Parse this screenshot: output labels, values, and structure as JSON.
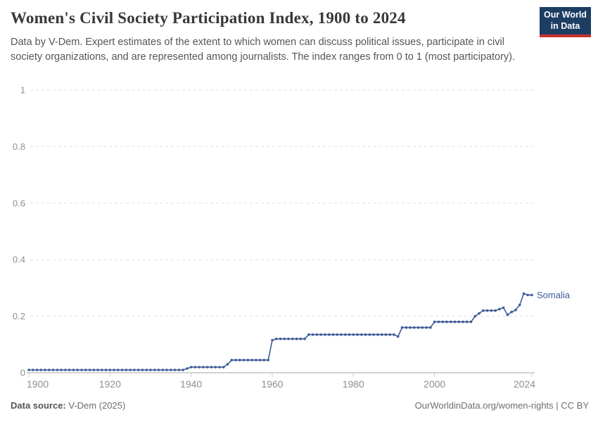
{
  "header": {
    "title": "Women's Civil Society Participation Index, 1900 to 2024",
    "subtitle": "Data by V-Dem. Expert estimates of the extent to which women can discuss political issues, participate in civil society organizations, and are represented among journalists. The index ranges from 0 to 1 (most participatory)."
  },
  "logo": {
    "line1": "Our World",
    "line2": "in Data",
    "bg_color": "#1d3d63",
    "stripe_color": "#c5312b"
  },
  "footer": {
    "source_label": "Data source:",
    "source_text": "V-Dem (2025)",
    "link_text": "OurWorldinData.org/women-rights | CC BY"
  },
  "chart_data": {
    "type": "line",
    "title": "Women's Civil Society Participation Index, 1900 to 2024",
    "xlabel": "",
    "ylabel": "",
    "xlim": [
      1900,
      2024
    ],
    "ylim": [
      0,
      1
    ],
    "xticks": [
      1900,
      1920,
      1940,
      1960,
      1980,
      2000,
      2024
    ],
    "yticks": [
      0,
      0.2,
      0.4,
      0.6,
      0.8,
      1
    ],
    "ytick_labels": [
      "0",
      "0.2",
      "0.4",
      "0.6",
      "0.8",
      "1"
    ],
    "grid": "horizontal-dashed",
    "legend_position": "end-of-line-label",
    "line_color": "#3e5c99",
    "grid_color": "#e0e0e0",
    "axis_color": "#a8a8a8",
    "tick_text_color": "#8f8f8f",
    "series": [
      {
        "name": "Somalia",
        "color": "#3e5c99",
        "x_start": 1900,
        "x_end": 2024,
        "x_step": 1,
        "values": [
          0.01,
          0.01,
          0.01,
          0.01,
          0.01,
          0.01,
          0.01,
          0.01,
          0.01,
          0.01,
          0.01,
          0.01,
          0.01,
          0.01,
          0.01,
          0.01,
          0.01,
          0.01,
          0.01,
          0.01,
          0.01,
          0.01,
          0.01,
          0.01,
          0.01,
          0.01,
          0.01,
          0.01,
          0.01,
          0.01,
          0.01,
          0.01,
          0.01,
          0.01,
          0.01,
          0.01,
          0.01,
          0.01,
          0.01,
          0.015,
          0.02,
          0.02,
          0.02,
          0.02,
          0.02,
          0.02,
          0.02,
          0.02,
          0.02,
          0.03,
          0.045,
          0.045,
          0.045,
          0.045,
          0.045,
          0.045,
          0.045,
          0.045,
          0.045,
          0.045,
          0.115,
          0.12,
          0.12,
          0.12,
          0.12,
          0.12,
          0.12,
          0.12,
          0.12,
          0.135,
          0.135,
          0.135,
          0.135,
          0.135,
          0.135,
          0.135,
          0.135,
          0.135,
          0.135,
          0.135,
          0.135,
          0.135,
          0.135,
          0.135,
          0.135,
          0.135,
          0.135,
          0.135,
          0.135,
          0.135,
          0.135,
          0.128,
          0.16,
          0.16,
          0.16,
          0.16,
          0.16,
          0.16,
          0.16,
          0.16,
          0.18,
          0.18,
          0.18,
          0.18,
          0.18,
          0.18,
          0.18,
          0.18,
          0.18,
          0.18,
          0.2,
          0.21,
          0.22,
          0.22,
          0.22,
          0.22,
          0.225,
          0.23,
          0.205,
          0.215,
          0.222,
          0.24,
          0.28,
          0.275,
          0.275
        ]
      }
    ]
  }
}
